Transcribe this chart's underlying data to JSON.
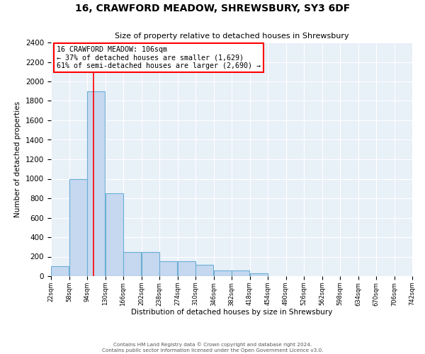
{
  "title": "16, CRAWFORD MEADOW, SHREWSBURY, SY3 6DF",
  "subtitle": "Size of property relative to detached houses in Shrewsbury",
  "xlabel": "Distribution of detached houses by size in Shrewsbury",
  "ylabel": "Number of detached properties",
  "bin_edges": [
    22,
    58,
    94,
    130,
    166,
    202,
    238,
    274,
    310,
    346,
    382,
    418,
    454,
    490,
    526,
    562,
    598,
    634,
    670,
    706,
    742
  ],
  "bar_heights": [
    100,
    1000,
    1900,
    850,
    250,
    250,
    150,
    150,
    115,
    60,
    60,
    30,
    0,
    0,
    0,
    0,
    0,
    0,
    0,
    0
  ],
  "bar_color": "#c5d8ef",
  "bar_edge_color": "#6baed6",
  "property_size": 106,
  "property_line_color": "red",
  "annotation_title": "16 CRAWFORD MEADOW: 106sqm",
  "annotation_line1": "← 37% of detached houses are smaller (1,629)",
  "annotation_line2": "61% of semi-detached houses are larger (2,690) →",
  "annotation_box_color": "white",
  "annotation_box_edge_color": "red",
  "ylim": [
    0,
    2400
  ],
  "yticks": [
    0,
    200,
    400,
    600,
    800,
    1000,
    1200,
    1400,
    1600,
    1800,
    2000,
    2200,
    2400
  ],
  "background_color": "#e8f0f8",
  "footer_line1": "Contains HM Land Registry data © Crown copyright and database right 2024.",
  "footer_line2": "Contains public sector information licensed under the Open Government Licence v3.0."
}
